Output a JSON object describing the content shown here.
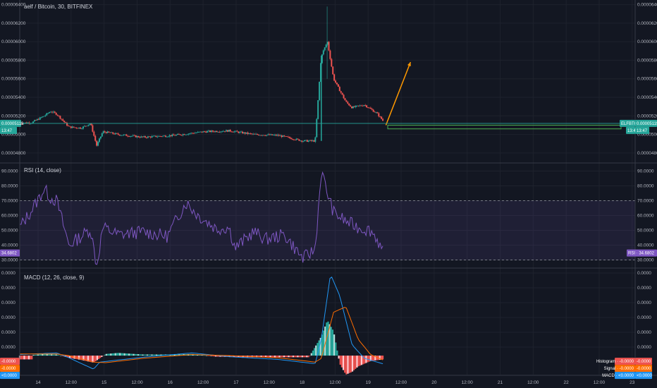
{
  "header": {
    "symbol_title": "aelf / Bitcoin, 30, BITFINEX"
  },
  "price_axis": {
    "labels": [
      "0.00006400",
      "0.00006200",
      "0.00006000",
      "0.00005800",
      "0.00005600",
      "0.00005400",
      "0.00005200",
      "0.00005000",
      "0.00004800"
    ],
    "current_price": "0.00005119",
    "countdown": "13:47",
    "symbol_tag": "ELFBTC"
  },
  "rsi_panel": {
    "title": "RSI (14, close)",
    "labels": [
      "90.0000",
      "80.0000",
      "70.0000",
      "60.0000",
      "50.0000",
      "40.0000",
      "30.0000"
    ],
    "value_tag": "34.6802",
    "legend_tag": "RSI · 34.6802"
  },
  "macd_panel": {
    "title": "MACD (12, 26, close, 9)",
    "labels": [
      "0.0000",
      "0.0000",
      "0.0000",
      "0.0000",
      "0.0000",
      "0.0000"
    ],
    "left_tags": [
      "-0.0000",
      "-0.0000",
      "<0.0000"
    ],
    "right_tags": [
      "Histogram · -0.0000",
      "Signal · -0.0000",
      "MACD · <0.0000"
    ]
  },
  "time_axis": {
    "labels": [
      "14",
      "12:00",
      "15",
      "12:00",
      "16",
      "12:00",
      "17",
      "12:00",
      "18",
      "12:00",
      "19",
      "12:00",
      "20",
      "12:00",
      "21",
      "12:00",
      "22",
      "12:00",
      "23"
    ]
  },
  "colors": {
    "up": "#26a69a",
    "down": "#ef5350",
    "rsi": "#7e57c2",
    "macd": "#2196f3",
    "signal": "#ff6d00",
    "arrow": "#ff9800",
    "support": "#4caf50"
  },
  "chart_data": [
    {
      "type": "candlestick",
      "title": "aelf / Bitcoin, 30, BITFINEX",
      "ylim": [
        4.7e-05,
        6.45e-05
      ],
      "x": [
        "14",
        "15",
        "16",
        "17",
        "18",
        "19",
        "20"
      ],
      "close_path": [
        [
          0.0,
          5.12e-05
        ],
        [
          0.02,
          5.13e-05
        ],
        [
          0.04,
          5.2e-05
        ],
        [
          0.05,
          5.25e-05
        ],
        [
          0.06,
          5.22e-05
        ],
        [
          0.07,
          5.15e-05
        ],
        [
          0.08,
          5.08e-05
        ],
        [
          0.1,
          5.07e-05
        ],
        [
          0.115,
          5.12e-05
        ],
        [
          0.125,
          4.88e-05
        ],
        [
          0.135,
          5.03e-05
        ],
        [
          0.16,
          5e-05
        ],
        [
          0.2,
          4.97e-05
        ],
        [
          0.25,
          4.99e-05
        ],
        [
          0.3,
          5.03e-05
        ],
        [
          0.34,
          5.04e-05
        ],
        [
          0.38,
          5e-05
        ],
        [
          0.42,
          4.99e-05
        ],
        [
          0.46,
          4.93e-05
        ],
        [
          0.48,
          4.93e-05
        ],
        [
          0.49,
          5.85e-05
        ],
        [
          0.5,
          6e-05
        ],
        [
          0.51,
          5.6e-05
        ],
        [
          0.53,
          5.35e-05
        ],
        [
          0.54,
          5.29e-05
        ],
        [
          0.56,
          5.32e-05
        ],
        [
          0.58,
          5.23e-05
        ],
        [
          0.59,
          5.15e-05
        ]
      ],
      "support_zone": [
        5.06e-05,
        5.1e-05
      ],
      "projection": {
        "from": [
          0.595,
          5.1e-05
        ],
        "to": [
          0.635,
          5.78e-05
        ]
      }
    },
    {
      "type": "line",
      "title": "RSI (14, close)",
      "ylim": [
        25,
        95
      ],
      "bands": [
        30,
        70
      ],
      "values": [
        [
          0.0,
          52
        ],
        [
          0.02,
          64
        ],
        [
          0.04,
          78
        ],
        [
          0.05,
          72
        ],
        [
          0.06,
          70
        ],
        [
          0.07,
          55
        ],
        [
          0.08,
          40
        ],
        [
          0.1,
          46
        ],
        [
          0.115,
          51
        ],
        [
          0.125,
          26
        ],
        [
          0.135,
          52
        ],
        [
          0.16,
          47
        ],
        [
          0.2,
          49
        ],
        [
          0.24,
          46
        ],
        [
          0.27,
          69
        ],
        [
          0.29,
          60
        ],
        [
          0.32,
          51
        ],
        [
          0.34,
          52
        ],
        [
          0.35,
          38
        ],
        [
          0.38,
          49
        ],
        [
          0.4,
          44
        ],
        [
          0.43,
          47
        ],
        [
          0.46,
          31
        ],
        [
          0.48,
          37
        ],
        [
          0.49,
          90
        ],
        [
          0.5,
          75
        ],
        [
          0.51,
          62
        ],
        [
          0.53,
          56
        ],
        [
          0.55,
          52
        ],
        [
          0.57,
          50
        ],
        [
          0.58,
          45
        ],
        [
          0.59,
          35
        ]
      ]
    },
    {
      "type": "line",
      "title": "MACD (12, 26, close, 9)",
      "series": [
        {
          "name": "MACD",
          "values": [
            [
              0.0,
              0.2
            ],
            [
              0.06,
              0.5
            ],
            [
              0.08,
              -0.4
            ],
            [
              0.12,
              -2.5
            ],
            [
              0.13,
              -1.2
            ],
            [
              0.2,
              -0.3
            ],
            [
              0.28,
              0.5
            ],
            [
              0.34,
              -0.2
            ],
            [
              0.42,
              -0.7
            ],
            [
              0.48,
              -1.5
            ],
            [
              0.49,
              3
            ],
            [
              0.505,
              15
            ],
            [
              0.52,
              11
            ],
            [
              0.54,
              2
            ],
            [
              0.56,
              -0.5
            ],
            [
              0.59,
              -1.5
            ]
          ]
        },
        {
          "name": "Signal",
          "values": [
            [
              0.0,
              0.3
            ],
            [
              0.06,
              0.3
            ],
            [
              0.08,
              0.0
            ],
            [
              0.12,
              -1.2
            ],
            [
              0.14,
              -1.3
            ],
            [
              0.2,
              -0.5
            ],
            [
              0.28,
              0.2
            ],
            [
              0.34,
              0.0
            ],
            [
              0.42,
              -0.4
            ],
            [
              0.48,
              -1.2
            ],
            [
              0.49,
              -0.5
            ],
            [
              0.51,
              8
            ],
            [
              0.53,
              9
            ],
            [
              0.55,
              3
            ],
            [
              0.57,
              0.2
            ],
            [
              0.59,
              -0.8
            ]
          ]
        }
      ],
      "histogram": [
        [
          0.02,
          0.1
        ],
        [
          0.04,
          0.3
        ],
        [
          0.06,
          0.2
        ],
        [
          0.08,
          -0.4
        ],
        [
          0.1,
          -0.8
        ],
        [
          0.12,
          -1.3
        ],
        [
          0.14,
          0.3
        ],
        [
          0.16,
          0.5
        ],
        [
          0.2,
          0.2
        ],
        [
          0.25,
          0.2
        ],
        [
          0.28,
          0.3
        ],
        [
          0.32,
          -0.2
        ],
        [
          0.36,
          -0.3
        ],
        [
          0.42,
          -0.3
        ],
        [
          0.47,
          -0.3
        ],
        [
          0.49,
          3.5
        ],
        [
          0.5,
          6.5
        ],
        [
          0.51,
          4.5
        ],
        [
          0.52,
          -1.5
        ],
        [
          0.53,
          -3.5
        ],
        [
          0.54,
          -3.0
        ],
        [
          0.55,
          -2.0
        ],
        [
          0.57,
          -1.0
        ],
        [
          0.59,
          -0.7
        ]
      ]
    }
  ]
}
